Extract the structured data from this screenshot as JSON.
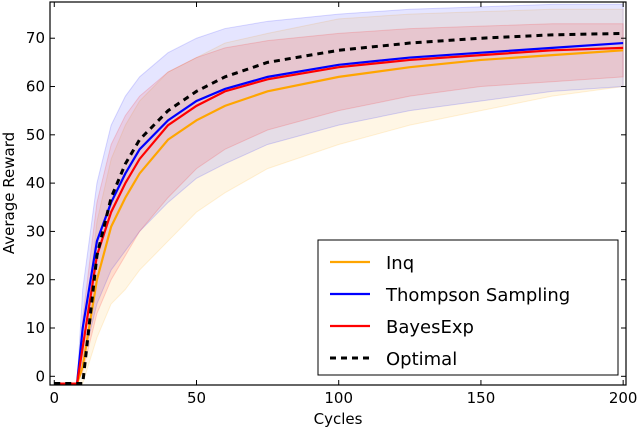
{
  "chart_data": {
    "type": "line",
    "title": "",
    "xlabel": "Cycles",
    "ylabel": "Average Reward",
    "xlim": [
      -1.5,
      201
    ],
    "ylim": [
      -1.8,
      77.5
    ],
    "xticks": [
      0,
      50,
      100,
      150,
      200
    ],
    "yticks": [
      0,
      10,
      20,
      30,
      40,
      50,
      60,
      70
    ],
    "grid": false,
    "legend_position": "bottom-right",
    "x": [
      0,
      8,
      10,
      15,
      20,
      25,
      30,
      40,
      50,
      60,
      75,
      100,
      125,
      150,
      175,
      200
    ],
    "series": [
      {
        "name": "Inq",
        "color": "#ffa500",
        "dash": false,
        "values": [
          -1.5,
          -1.5,
          2,
          20,
          31,
          37,
          42,
          49,
          53,
          56,
          59,
          62,
          64,
          65.5,
          66.5,
          67.5
        ],
        "upper": [
          -1.5,
          -1.5,
          5,
          32,
          45,
          52,
          57,
          63,
          66,
          69,
          71,
          74,
          75,
          75.5,
          76,
          76
        ],
        "lower": [
          -1.5,
          -1.5,
          -1.5,
          8,
          15,
          18,
          22,
          28,
          34,
          38,
          43,
          48,
          52,
          55,
          58,
          60
        ]
      },
      {
        "name": "Thompson Sampling",
        "color": "#0000ff",
        "dash": false,
        "values": [
          -1.5,
          -1.5,
          10,
          28,
          36,
          42,
          47,
          53,
          57,
          59.5,
          62,
          64.5,
          66,
          67,
          68,
          69
        ],
        "upper": [
          -1.5,
          -1.5,
          18,
          40,
          52,
          58,
          62,
          67,
          70,
          72,
          73.5,
          75,
          76,
          76.5,
          77,
          77
        ],
        "lower": [
          -1.5,
          -1.5,
          3,
          15,
          22,
          26,
          30,
          36,
          41,
          44,
          48,
          52,
          55,
          57,
          59,
          60
        ]
      },
      {
        "name": "BayesExp",
        "color": "#ff0000",
        "dash": false,
        "values": [
          -1.5,
          -1.5,
          6,
          25,
          34,
          40,
          45,
          52,
          56,
          59,
          61.5,
          64,
          65.5,
          66.5,
          67.5,
          68
        ],
        "upper": [
          -1.5,
          -1.5,
          12,
          36,
          48,
          54,
          58,
          63,
          66,
          68,
          69.5,
          71,
          72,
          72.5,
          73,
          73
        ],
        "lower": [
          -1.5,
          -1.5,
          1,
          13,
          20,
          25,
          30,
          37,
          43,
          47,
          51,
          55,
          58,
          60,
          61,
          62
        ]
      },
      {
        "name": "Optimal",
        "color": "#000000",
        "dash": true,
        "values": [
          -1.5,
          -1.5,
          -1.5,
          25,
          37,
          44,
          49,
          55,
          59,
          62,
          65,
          67.5,
          69,
          70,
          70.7,
          71
        ]
      }
    ]
  }
}
